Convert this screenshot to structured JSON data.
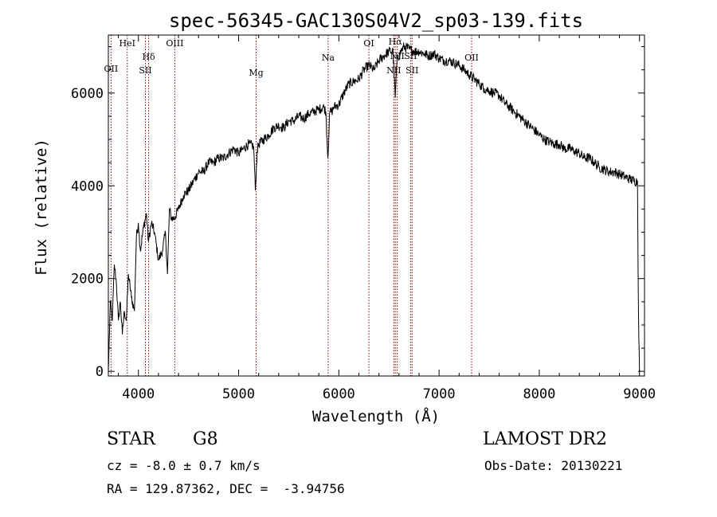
{
  "chart_data": {
    "type": "line",
    "title": "spec-56345-GAC130S04V2_sp03-139.fits",
    "xlabel": "Wavelength (Å)",
    "ylabel": "Flux (relative)",
    "xlim": [
      3700,
      9050
    ],
    "ylim": [
      -100,
      7250
    ],
    "x_ticks": [
      4000,
      5000,
      6000,
      7000,
      8000,
      9000
    ],
    "y_ticks": [
      0,
      2000,
      4000,
      6000
    ],
    "x_tick_labels": [
      "4000",
      "5000",
      "6000",
      "7000",
      "8000",
      "9000"
    ],
    "y_tick_labels": [
      "0",
      "2000",
      "4000",
      "6000"
    ],
    "grid": false,
    "series": [
      {
        "x": [
          3700,
          3720,
          3740,
          3760,
          3780,
          3800,
          3820,
          3840,
          3860,
          3880,
          3900,
          3930,
          3960,
          3980,
          4000,
          4020,
          4050,
          4080,
          4100,
          4130,
          4160,
          4200,
          4240,
          4270,
          4290,
          4310,
          4330,
          4360,
          4400,
          4450,
          4500,
          4550,
          4600,
          4650,
          4700,
          4750,
          4800,
          4850,
          4900,
          4950,
          5000,
          5050,
          5100,
          5150,
          5167,
          5185,
          5200,
          5250,
          5300,
          5350,
          5400,
          5450,
          5500,
          5550,
          5600,
          5650,
          5700,
          5750,
          5800,
          5850,
          5870,
          5890,
          5910,
          5930,
          5950,
          6000,
          6050,
          6100,
          6150,
          6200,
          6250,
          6300,
          6350,
          6400,
          6450,
          6500,
          6540,
          6563,
          6580,
          6620,
          6650,
          6700,
          6750,
          6800,
          6850,
          6900,
          6950,
          7000,
          7050,
          7100,
          7150,
          7200,
          7250,
          7300,
          7350,
          7400,
          7450,
          7500,
          7550,
          7600,
          7650,
          7700,
          7750,
          7800,
          7850,
          7900,
          7950,
          8000,
          8050,
          8100,
          8150,
          8200,
          8250,
          8300,
          8350,
          8400,
          8450,
          8500,
          8550,
          8600,
          8650,
          8700,
          8750,
          8800,
          8850,
          8900,
          8950,
          8980,
          8990,
          9000
        ],
        "y": [
          0,
          1500,
          1100,
          2300,
          1900,
          1100,
          1500,
          800,
          1300,
          1100,
          2100,
          1600,
          1300,
          2900,
          3200,
          2600,
          3100,
          3400,
          2800,
          3200,
          3000,
          2400,
          2600,
          3000,
          2100,
          3500,
          3300,
          3300,
          3500,
          3800,
          3900,
          4100,
          4300,
          4300,
          4500,
          4500,
          4600,
          4600,
          4700,
          4800,
          4700,
          4800,
          4900,
          4850,
          3900,
          4750,
          4900,
          5000,
          5100,
          5250,
          5300,
          5250,
          5400,
          5400,
          5500,
          5450,
          5550,
          5600,
          5650,
          5700,
          5600,
          4600,
          5600,
          5600,
          5700,
          5750,
          6000,
          6200,
          6250,
          6300,
          6500,
          6600,
          6500,
          6700,
          6800,
          6900,
          6900,
          5900,
          6700,
          6900,
          7000,
          6950,
          6900,
          6900,
          6850,
          6800,
          6850,
          6750,
          6700,
          6700,
          6650,
          6600,
          6500,
          6400,
          6300,
          6200,
          6100,
          6050,
          6000,
          5950,
          5800,
          5700,
          5600,
          5500,
          5400,
          5300,
          5200,
          5100,
          5000,
          4950,
          4900,
          4900,
          4800,
          4800,
          4750,
          4700,
          4600,
          4600,
          4500,
          4400,
          4350,
          4300,
          4300,
          4250,
          4200,
          4150,
          4100,
          4100,
          1200,
          0
        ]
      }
    ],
    "lines": [
      {
        "name": "OII",
        "x": 3727
      },
      {
        "name": "HeI",
        "x": 3889
      },
      {
        "name": "Hδ",
        "x": 4102
      },
      {
        "name": "SII",
        "x": 4070
      },
      {
        "name": "OIII",
        "x": 4363
      },
      {
        "name": "Mg",
        "x": 5175
      },
      {
        "name": "Na",
        "x": 5893
      },
      {
        "name": "OI",
        "x": 6300
      },
      {
        "name": "NII",
        "x": 6548
      },
      {
        "name": "Hα",
        "x": 6563
      },
      {
        "name": "NII",
        "x": 6583
      },
      {
        "name": "SII",
        "x": 6716
      },
      {
        "name": "SII",
        "x": 6731
      },
      {
        "name": "OII",
        "x": 7325
      }
    ],
    "legend": "none"
  },
  "info": {
    "class_label": "STAR",
    "subclass_label": "G8",
    "survey_label": "LAMOST DR2",
    "cz_text": "cz = -8.0 ± 0.7 km/s",
    "obs_date_text": "Obs-Date: 20130221",
    "coords_text": "RA = 129.87362, DEC =  -3.94756"
  }
}
